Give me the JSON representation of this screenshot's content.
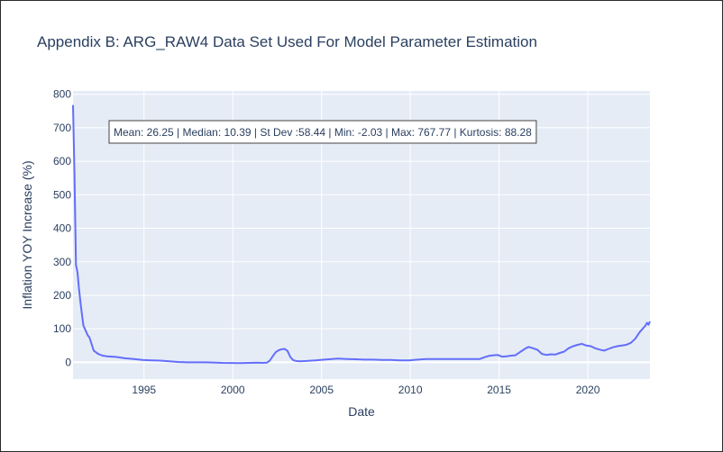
{
  "chart_data": {
    "type": "line",
    "title": "Appendix B: ARG_RAW4 Data Set Used For Model Parameter Estimation",
    "xlabel": "Date",
    "ylabel": "Inflation YOY Increase (%)",
    "xlim": [
      "1991-01",
      "2023-07"
    ],
    "ylim": [
      -50,
      810
    ],
    "x_ticks": [
      "1995",
      "2000",
      "2005",
      "2010",
      "2015",
      "2020"
    ],
    "y_ticks": [
      "0",
      "100",
      "200",
      "300",
      "400",
      "500",
      "600",
      "700",
      "800"
    ],
    "grid": true,
    "annotation": "Mean: 26.25 | Median: 10.39 | St Dev :58.44 | Min: -2.03 | Max: 767.77 | Kurtosis: 88.28",
    "colors": {
      "line": "#636efa",
      "plot_bg": "#e5ecf6",
      "grid": "#ffffff",
      "text": "#2a3f5f"
    },
    "series": [
      {
        "x": [
          "1991-01",
          "1991-02",
          "1991-03",
          "1991-04",
          "1991-05",
          "1991-06",
          "1991-07",
          "1991-08",
          "1991-09",
          "1991-10",
          "1991-11",
          "1991-12",
          "1992-03",
          "1992-06",
          "1992-09",
          "1992-12",
          "1993-06",
          "1993-12",
          "1994-06",
          "1994-12",
          "1995-06",
          "1995-12",
          "1996-06",
          "1996-12",
          "1997-06",
          "1997-12",
          "1998-06",
          "1998-12",
          "1999-06",
          "1999-12",
          "2000-06",
          "2000-12",
          "2001-06",
          "2001-09",
          "2001-12",
          "2002-02",
          "2002-04",
          "2002-06",
          "2002-08",
          "2002-10",
          "2002-12",
          "2003-02",
          "2003-04",
          "2003-06",
          "2003-08",
          "2003-10",
          "2003-12",
          "2004-03",
          "2004-06",
          "2004-09",
          "2004-12",
          "2005-06",
          "2005-12",
          "2006-06",
          "2006-12",
          "2007-06",
          "2007-12",
          "2008-06",
          "2008-12",
          "2009-06",
          "2009-12",
          "2010-06",
          "2010-12",
          "2011-06",
          "2011-12",
          "2012-06",
          "2012-12",
          "2013-06",
          "2013-12",
          "2014-03",
          "2014-06",
          "2014-09",
          "2014-12",
          "2015-03",
          "2015-06",
          "2015-09",
          "2015-12",
          "2016-03",
          "2016-05",
          "2016-07",
          "2016-09",
          "2016-12",
          "2017-03",
          "2017-06",
          "2017-09",
          "2017-12",
          "2018-03",
          "2018-06",
          "2018-09",
          "2018-12",
          "2019-03",
          "2019-06",
          "2019-09",
          "2019-12",
          "2020-03",
          "2020-06",
          "2020-09",
          "2020-12",
          "2021-03",
          "2021-06",
          "2021-09",
          "2021-12",
          "2022-03",
          "2022-06",
          "2022-09",
          "2022-12",
          "2023-02",
          "2023-04",
          "2023-05",
          "2023-06",
          "2023-07"
        ],
        "values": [
          767.77,
          560,
          290,
          270,
          220,
          180,
          145,
          110,
          100,
          90,
          80,
          75,
          35,
          25,
          20,
          18,
          16,
          12,
          10,
          7,
          6,
          5,
          3,
          1,
          0,
          0,
          0,
          -0.5,
          -1.5,
          -1.8,
          -2.03,
          -1.5,
          -1,
          -1.5,
          -1,
          5,
          18,
          30,
          36,
          39,
          40,
          34,
          15,
          6,
          4,
          3,
          3.5,
          4,
          5,
          6,
          7,
          9,
          11,
          10,
          9,
          8,
          8,
          7,
          7,
          6,
          6,
          8,
          10,
          10,
          10,
          10,
          10,
          10,
          10,
          15,
          19,
          21,
          22,
          17,
          18,
          20,
          21,
          30,
          36,
          42,
          46,
          42,
          37,
          25,
          22,
          24,
          23,
          28,
          32,
          42,
          48,
          52,
          55,
          50,
          48,
          42,
          38,
          35,
          40,
          45,
          48,
          50,
          52,
          58,
          70,
          90,
          100,
          110,
          118,
          112,
          122
        ]
      }
    ]
  }
}
